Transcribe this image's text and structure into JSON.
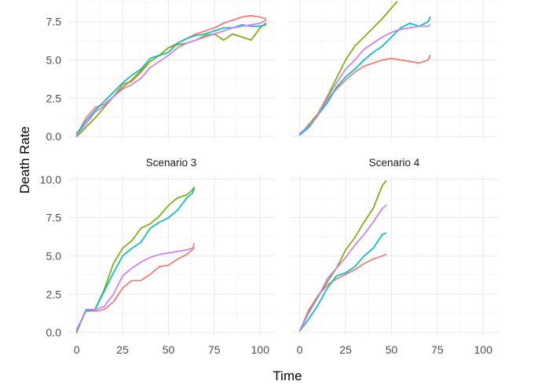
{
  "chart_data": {
    "type": "line",
    "layout": "2x2 facet grid, shared axes",
    "xlabel": "Time",
    "ylabel": "Death Rate",
    "xlim": [
      -5,
      108
    ],
    "ylim": [
      -0.2,
      10.3
    ],
    "x_ticks": [
      0,
      25,
      50,
      75,
      100
    ],
    "x_tick_labels": [
      "0",
      "25",
      "50",
      "75",
      "100"
    ],
    "y_ticks": [
      0,
      2.5,
      5,
      7.5,
      10
    ],
    "y_tick_labels": [
      "0.0",
      "2.5",
      "5.0",
      "7.5",
      "10.0"
    ],
    "grid": true,
    "legend": "none",
    "series_colors": [
      "#F8766D",
      "#7CAE00",
      "#00BFC4",
      "#C77CFF"
    ],
    "panels": [
      {
        "strip": "",
        "series": [
          {
            "color": "#F8766D",
            "x": [
              0,
              5,
              10,
              15,
              20,
              25,
              30,
              35,
              40,
              45,
              50,
              55,
              60,
              65,
              70,
              75,
              80,
              85,
              90,
              95,
              100,
              103
            ],
            "y": [
              0.1,
              1.2,
              1.9,
              2.1,
              2.6,
              3.4,
              3.6,
              4.2,
              4.9,
              5.3,
              5.8,
              6.1,
              6.4,
              6.7,
              6.9,
              7.1,
              7.4,
              7.6,
              7.8,
              7.9,
              7.8,
              7.7
            ]
          },
          {
            "color": "#7CAE00",
            "x": [
              0,
              5,
              10,
              15,
              20,
              25,
              30,
              35,
              40,
              45,
              50,
              55,
              60,
              65,
              70,
              75,
              80,
              85,
              90,
              95,
              100,
              103
            ],
            "y": [
              0.0,
              0.6,
              1.2,
              1.9,
              2.6,
              3.2,
              3.7,
              4.3,
              4.9,
              5.3,
              5.8,
              6.0,
              6.1,
              6.3,
              6.6,
              6.7,
              6.3,
              6.7,
              6.5,
              6.3,
              7.1,
              7.4
            ]
          },
          {
            "color": "#00BFC4",
            "x": [
              0,
              5,
              10,
              15,
              20,
              25,
              30,
              35,
              40,
              45,
              50,
              55,
              60,
              65,
              70,
              75,
              80,
              85,
              90,
              95,
              100,
              103
            ],
            "y": [
              0.2,
              1.0,
              1.7,
              2.3,
              2.9,
              3.5,
              4.0,
              4.4,
              5.1,
              5.3,
              5.5,
              6.1,
              6.4,
              6.6,
              6.7,
              6.9,
              7.1,
              7.1,
              7.3,
              7.2,
              7.2,
              7.3
            ]
          },
          {
            "color": "#C77CFF",
            "x": [
              0,
              5,
              10,
              15,
              20,
              25,
              30,
              35,
              40,
              45,
              50,
              55,
              60,
              65,
              70,
              75,
              80,
              85,
              90,
              95,
              100,
              103
            ],
            "y": [
              0.1,
              0.8,
              1.6,
              2.0,
              2.6,
              3.1,
              3.4,
              3.8,
              4.5,
              4.9,
              5.3,
              5.8,
              6.1,
              6.3,
              6.5,
              6.7,
              6.9,
              7.1,
              7.2,
              7.3,
              7.4,
              7.6
            ]
          }
        ]
      },
      {
        "strip": "",
        "series": [
          {
            "color": "#F8766D",
            "x": [
              0,
              5,
              10,
              15,
              20,
              25,
              30,
              35,
              40,
              45,
              50,
              55,
              60,
              65,
              70,
              71
            ],
            "y": [
              0.1,
              0.7,
              1.4,
              2.4,
              3.1,
              3.7,
              4.2,
              4.6,
              4.8,
              5.0,
              5.1,
              5.0,
              4.9,
              4.8,
              5.0,
              5.3
            ]
          },
          {
            "color": "#7CAE00",
            "x": [
              0,
              5,
              10,
              15,
              20,
              25,
              30,
              35,
              40,
              45,
              50,
              53
            ],
            "y": [
              0.1,
              0.8,
              1.5,
              2.6,
              3.8,
              5.0,
              5.9,
              6.5,
              7.1,
              7.7,
              8.4,
              8.8
            ]
          },
          {
            "color": "#00BFC4",
            "x": [
              0,
              5,
              10,
              15,
              20,
              25,
              30,
              35,
              40,
              45,
              50,
              55,
              60,
              65,
              70,
              71
            ],
            "y": [
              0.1,
              0.6,
              1.4,
              2.2,
              3.2,
              3.9,
              4.4,
              5.0,
              5.5,
              5.9,
              6.5,
              7.1,
              7.4,
              7.2,
              7.5,
              7.8
            ]
          },
          {
            "color": "#C77CFF",
            "x": [
              0,
              5,
              10,
              15,
              20,
              25,
              30,
              35,
              40,
              45,
              50,
              55,
              60,
              65,
              70,
              71
            ],
            "y": [
              0.2,
              0.7,
              1.4,
              2.5,
              3.5,
              4.4,
              5.0,
              5.7,
              6.1,
              6.5,
              6.8,
              7.0,
              7.1,
              7.2,
              7.2,
              7.3
            ]
          }
        ]
      },
      {
        "strip": "Scenario 3",
        "series": [
          {
            "color": "#F8766D",
            "x": [
              0,
              5,
              10,
              15,
              20,
              25,
              30,
              35,
              40,
              45,
              50,
              55,
              60,
              63,
              64
            ],
            "y": [
              0.1,
              1.4,
              1.4,
              1.5,
              2.0,
              2.9,
              3.4,
              3.4,
              3.8,
              4.3,
              4.4,
              4.8,
              5.1,
              5.4,
              5.8
            ]
          },
          {
            "color": "#7CAE00",
            "x": [
              0,
              5,
              10,
              15,
              20,
              25,
              30,
              35,
              40,
              45,
              50,
              55,
              60,
              63,
              64
            ],
            "y": [
              0.0,
              1.5,
              1.5,
              2.8,
              4.5,
              5.5,
              6.0,
              6.8,
              7.1,
              7.6,
              8.3,
              8.8,
              9.0,
              9.3,
              9.5
            ]
          },
          {
            "color": "#00BFC4",
            "x": [
              0,
              5,
              10,
              15,
              20,
              25,
              30,
              35,
              40,
              45,
              50,
              55,
              60,
              63,
              64
            ],
            "y": [
              0.2,
              1.4,
              1.5,
              2.7,
              3.9,
              5.0,
              5.5,
              5.9,
              6.8,
              7.2,
              7.5,
              8.0,
              8.8,
              9.1,
              9.4
            ]
          },
          {
            "color": "#C77CFF",
            "x": [
              0,
              5,
              10,
              15,
              20,
              25,
              30,
              35,
              40,
              45,
              50,
              55,
              60,
              63,
              64
            ],
            "y": [
              0.1,
              1.5,
              1.5,
              1.7,
              2.5,
              3.7,
              4.2,
              4.6,
              4.9,
              5.1,
              5.2,
              5.3,
              5.4,
              5.5,
              5.5
            ]
          }
        ]
      },
      {
        "strip": "Scenario 4",
        "series": [
          {
            "color": "#F8766D",
            "x": [
              0,
              5,
              10,
              15,
              20,
              25,
              30,
              35,
              40,
              45,
              47
            ],
            "y": [
              0.1,
              1.5,
              2.4,
              3.1,
              3.5,
              3.8,
              4.1,
              4.5,
              4.8,
              5.0,
              5.1
            ]
          },
          {
            "color": "#7CAE00",
            "x": [
              0,
              5,
              10,
              15,
              20,
              25,
              30,
              35,
              40,
              45,
              47
            ],
            "y": [
              0.1,
              1.4,
              2.4,
              3.3,
              4.2,
              5.4,
              6.2,
              7.2,
              8.1,
              9.6,
              9.9
            ]
          },
          {
            "color": "#00BFC4",
            "x": [
              0,
              5,
              10,
              15,
              20,
              25,
              30,
              35,
              40,
              45,
              47
            ],
            "y": [
              0.1,
              0.9,
              1.8,
              2.9,
              3.7,
              3.9,
              4.3,
              5.0,
              5.5,
              6.4,
              6.5
            ]
          },
          {
            "color": "#C77CFF",
            "x": [
              0,
              5,
              10,
              15,
              20,
              25,
              30,
              35,
              40,
              45,
              47
            ],
            "y": [
              0.1,
              1.3,
              2.3,
              3.5,
              4.2,
              4.9,
              5.7,
              6.4,
              7.2,
              8.1,
              8.3
            ]
          }
        ]
      }
    ]
  }
}
